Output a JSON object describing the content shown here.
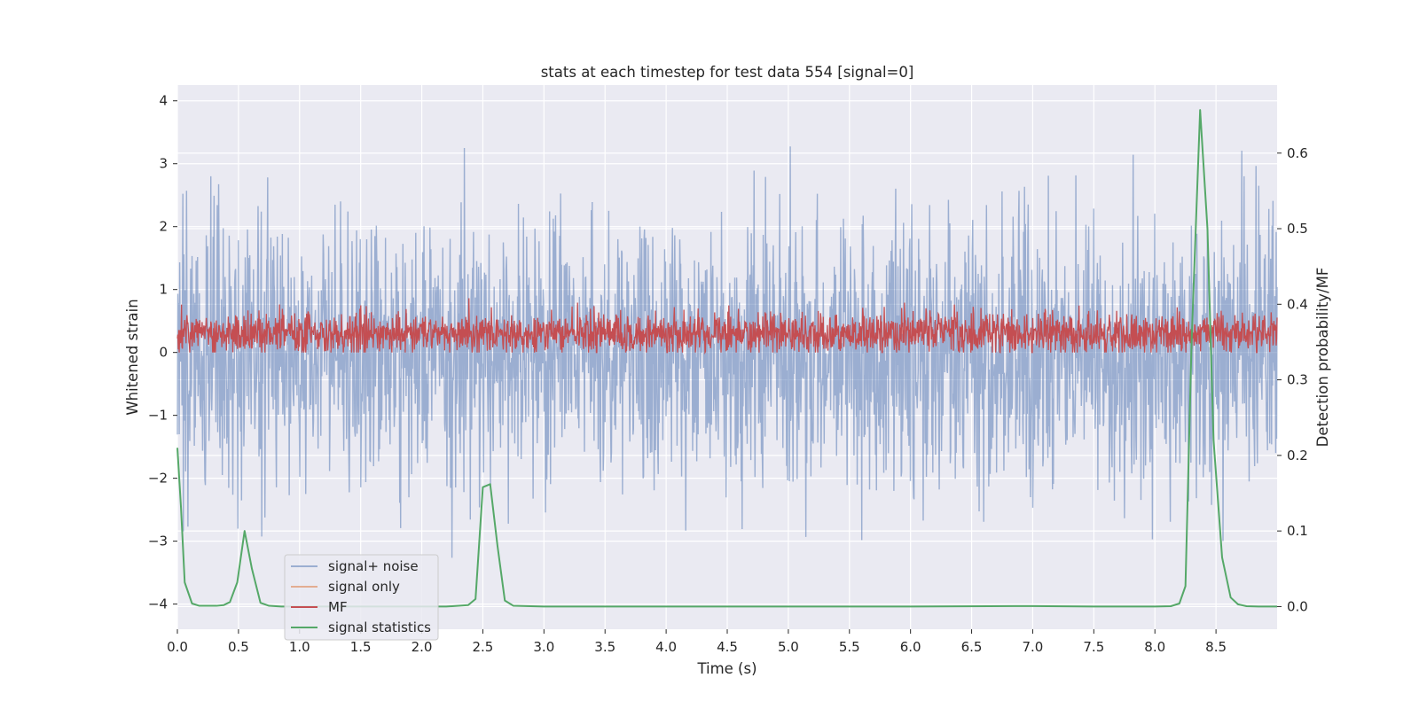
{
  "chart_data": {
    "type": "line",
    "title": "stats at each timestep for test data 554 [signal=0]",
    "xlabel": "Time (s)",
    "ylabel": "Whitened strain",
    "y2label": "Detection probability/MF",
    "xlim": [
      0.0,
      9.0
    ],
    "ylim": [
      -4.4,
      4.25
    ],
    "y2lim": [
      -0.03,
      0.69
    ],
    "x_ticks": [
      "0.0",
      "0.5",
      "1.0",
      "1.5",
      "2.0",
      "2.5",
      "3.0",
      "3.5",
      "4.0",
      "4.5",
      "5.0",
      "5.5",
      "6.0",
      "6.5",
      "7.0",
      "7.5",
      "8.0",
      "8.5"
    ],
    "y_ticks": [
      "4",
      "3",
      "2",
      "1",
      "0",
      "−1",
      "−2",
      "−3",
      "−4"
    ],
    "y2_ticks": [
      "0.6",
      "0.5",
      "0.4",
      "0.3",
      "0.2",
      "0.1",
      "0.0"
    ],
    "grid": true,
    "legend_position": "lower-left",
    "colors": {
      "signal_noise": "#4c72b0",
      "signal_only": "#dd8452",
      "mf": "#c44e52",
      "signal_statistics": "#55a868",
      "background": "#eaeaf2",
      "grid": "#ffffff"
    },
    "series": [
      {
        "name": "signal+ noise",
        "axis": "left",
        "style": "dense noise, approx range -4.0 to 3.9, std ~1.0",
        "n_samples": 2400
      },
      {
        "name": "signal only",
        "axis": "left",
        "values": []
      },
      {
        "name": "MF",
        "axis": "left",
        "style": "dense noise, approx range 0.0 to 1.0, mean ~0.3",
        "n_samples": 2400
      },
      {
        "name": "signal statistics",
        "axis": "right",
        "x": [
          0.0,
          0.03,
          0.06,
          0.12,
          0.18,
          0.25,
          0.32,
          0.38,
          0.43,
          0.49,
          0.55,
          0.61,
          0.68,
          0.75,
          0.85,
          1.0,
          1.2,
          1.4,
          1.6,
          1.8,
          2.0,
          2.2,
          2.38,
          2.44,
          2.5,
          2.56,
          2.62,
          2.68,
          2.75,
          3.0,
          4.0,
          5.0,
          6.0,
          7.0,
          7.5,
          8.0,
          8.13,
          8.2,
          8.25,
          8.3,
          8.37,
          8.43,
          8.48,
          8.55,
          8.62,
          8.68,
          8.75,
          8.85,
          9.0
        ],
        "values": [
          0.21,
          0.13,
          0.032,
          0.004,
          0.001,
          0.001,
          0.001,
          0.002,
          0.006,
          0.032,
          0.1,
          0.05,
          0.005,
          0.001,
          0.0,
          0.0,
          0.0,
          0.0,
          0.0,
          0.0,
          0.0,
          0.0,
          0.002,
          0.01,
          0.158,
          0.162,
          0.08,
          0.008,
          0.001,
          0.0,
          0.0,
          0.0,
          0.0,
          0.0007,
          0.0,
          0.0,
          0.0005,
          0.004,
          0.027,
          0.35,
          0.657,
          0.5,
          0.22,
          0.065,
          0.012,
          0.003,
          0.0005,
          0.0,
          0.0
        ]
      }
    ]
  }
}
